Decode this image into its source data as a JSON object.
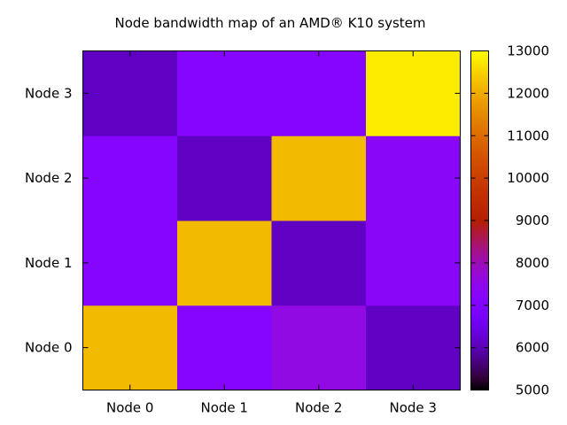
{
  "chart_data": {
    "type": "heatmap",
    "title": "Node bandwidth map of an AMD® K10 system",
    "x_categories": [
      "Node 0",
      "Node 1",
      "Node 2",
      "Node 3"
    ],
    "y_categories": [
      "Node 0",
      "Node 1",
      "Node 2",
      "Node 3"
    ],
    "values_by_row": [
      [
        12200,
        7200,
        7600,
        6100
      ],
      [
        7200,
        12200,
        6100,
        7300
      ],
      [
        7200,
        6100,
        12200,
        7300
      ],
      [
        6100,
        7200,
        7200,
        12800
      ]
    ],
    "row_order": "bottom-to-top",
    "colorbar": {
      "min": 5000,
      "max": 13000,
      "ticks": [
        5000,
        6000,
        7000,
        8000,
        9000,
        10000,
        11000,
        12000,
        13000
      ],
      "palette": "gnuplot rgbformulae 7,5,15",
      "placement": "right"
    },
    "grid": false
  }
}
